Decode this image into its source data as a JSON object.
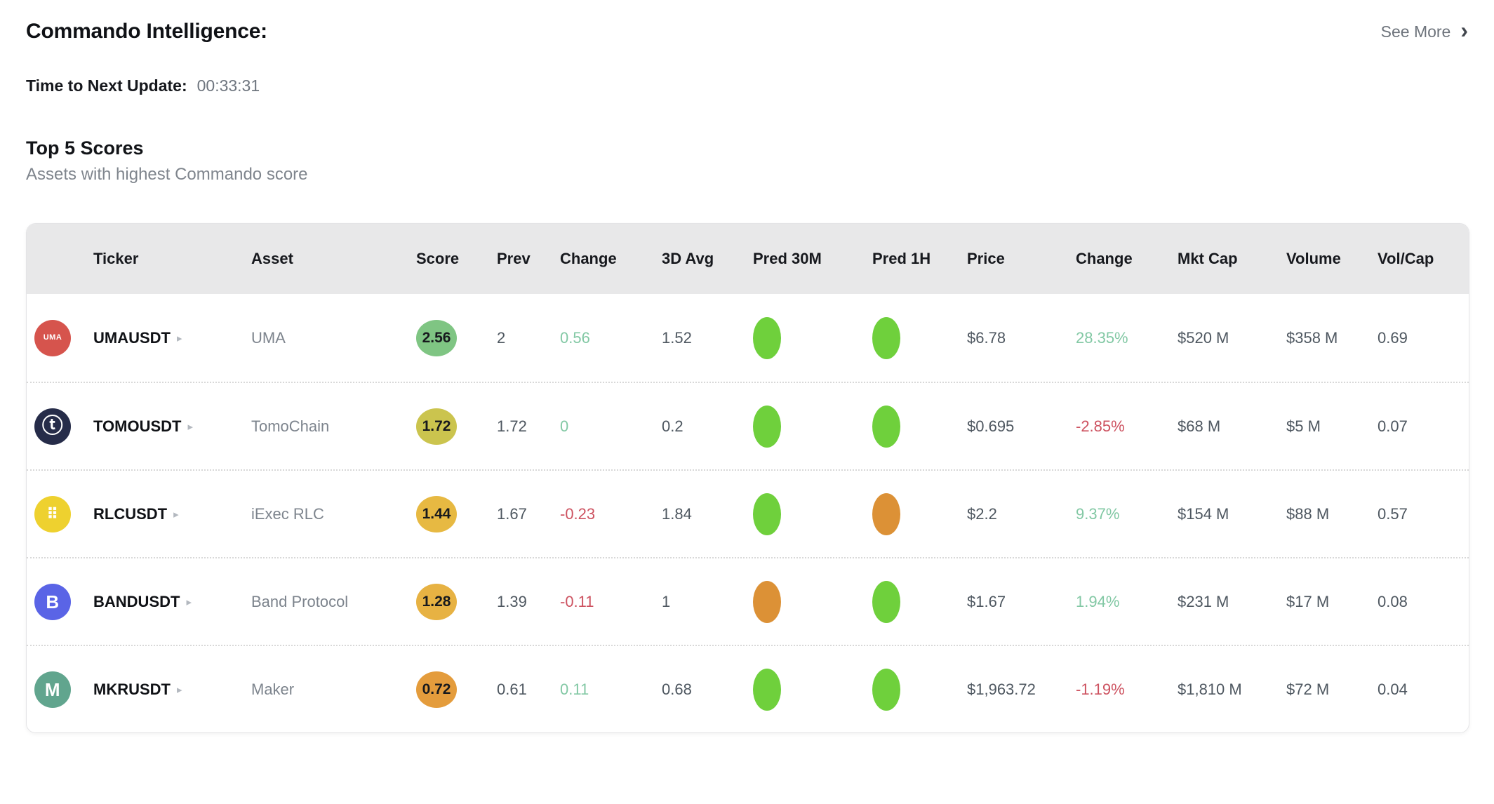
{
  "header": {
    "title": "Commando Intelligence:",
    "see_more_label": "See More",
    "see_more_chevron": "›"
  },
  "update": {
    "label": "Time to Next Update:",
    "value": "00:33:31"
  },
  "section": {
    "title": "Top 5 Scores",
    "subtitle": "Assets with highest Commando score"
  },
  "ui": {
    "ticker_chevron": "▸"
  },
  "colors": {
    "positive_text": "#82c8a4",
    "negative_text": "#cd5260",
    "pred_green": "#6fd03c",
    "pred_orange": "#dc9136",
    "header_bg": "#e8e8e9"
  },
  "table": {
    "columns": [
      "Ticker",
      "Asset",
      "Score",
      "Prev",
      "Change",
      "3D Avg",
      "Pred 30M",
      "Pred 1H",
      "Price",
      "Change",
      "Mkt Cap",
      "Volume",
      "Vol/Cap"
    ],
    "rows": [
      {
        "ticker": "UMAUSDT",
        "asset": "UMA",
        "icon": {
          "name": "uma-logo-icon",
          "bg": "#d6544d",
          "glyph": "UMA",
          "size": "11px"
        },
        "score": "2.56",
        "score_bg": "#7fc583",
        "prev": "2",
        "change": "0.56",
        "change_color": "#82c8a4",
        "avg3d": "1.52",
        "pred30m": "#6fd03c",
        "pred1h": "#6fd03c",
        "price": "$6.78",
        "pct": "28.35%",
        "pct_color": "#82c8a4",
        "mktcap": "$520 M",
        "volume": "$358 M",
        "volcap": "0.69"
      },
      {
        "ticker": "TOMOUSDT",
        "asset": "TomoChain",
        "icon": {
          "name": "tomochain-logo-icon",
          "bg": "#262c49",
          "glyph": "ⓣ",
          "size": "30px"
        },
        "score": "1.72",
        "score_bg": "#cbc44e",
        "prev": "1.72",
        "change": "0",
        "change_color": "#82c8a4",
        "avg3d": "0.2",
        "pred30m": "#6fd03c",
        "pred1h": "#6fd03c",
        "price": "$0.695",
        "pct": "-2.85%",
        "pct_color": "#cd5260",
        "mktcap": "$68 M",
        "volume": "$5 M",
        "volcap": "0.07"
      },
      {
        "ticker": "RLCUSDT",
        "asset": "iExec RLC",
        "icon": {
          "name": "iexec-rlc-logo-icon",
          "bg": "#eed12f",
          "glyph": "⠿",
          "size": "22px"
        },
        "score": "1.44",
        "score_bg": "#e7b942",
        "prev": "1.67",
        "change": "-0.23",
        "change_color": "#cd5260",
        "avg3d": "1.84",
        "pred30m": "#6fd03c",
        "pred1h": "#dc9136",
        "price": "$2.2",
        "pct": "9.37%",
        "pct_color": "#82c8a4",
        "mktcap": "$154 M",
        "volume": "$88 M",
        "volcap": "0.57"
      },
      {
        "ticker": "BANDUSDT",
        "asset": "Band Protocol",
        "icon": {
          "name": "band-protocol-logo-icon",
          "bg": "#5a64e6",
          "glyph": "B",
          "size": "26px"
        },
        "score": "1.28",
        "score_bg": "#e7b243",
        "prev": "1.39",
        "change": "-0.11",
        "change_color": "#cd5260",
        "avg3d": "1",
        "pred30m": "#dc9136",
        "pred1h": "#6fd03c",
        "price": "$1.67",
        "pct": "1.94%",
        "pct_color": "#82c8a4",
        "mktcap": "$231 M",
        "volume": "$17 M",
        "volcap": "0.08"
      },
      {
        "ticker": "MKRUSDT",
        "asset": "Maker",
        "icon": {
          "name": "maker-logo-icon",
          "bg": "#61a58e",
          "glyph": "M",
          "size": "26px"
        },
        "score": "0.72",
        "score_bg": "#e49c3c",
        "prev": "0.61",
        "change": "0.11",
        "change_color": "#82c8a4",
        "avg3d": "0.68",
        "pred30m": "#6fd03c",
        "pred1h": "#6fd03c",
        "price": "$1,963.72",
        "pct": "-1.19%",
        "pct_color": "#cd5260",
        "mktcap": "$1,810 M",
        "volume": "$72 M",
        "volcap": "0.04"
      }
    ]
  }
}
